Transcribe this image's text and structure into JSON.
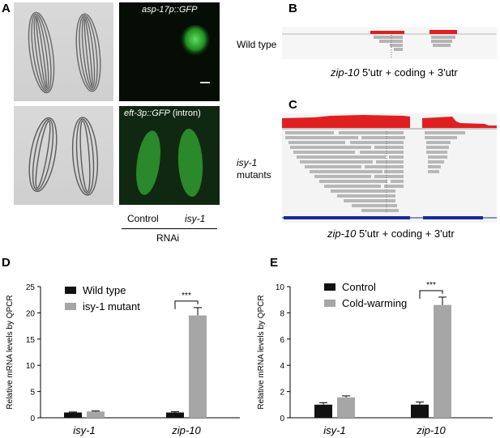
{
  "panels": {
    "A": {
      "label": "A",
      "top_right_title": "asp-17p::GFP",
      "bottom_right_title": "eft-3p::GFP",
      "bottom_right_title_suffix": "(intron)",
      "control_label": "Control",
      "isy1_label": "isy-1",
      "rnai_label": "RNAi"
    },
    "B": {
      "label": "B",
      "row_label": "Wild type",
      "gene": "zip-10",
      "caption_rest": "5'utr + coding + 3'utr"
    },
    "C": {
      "label": "C",
      "row_label_italic": "isy-1",
      "row_label_rest": "mutants",
      "gene": "zip-10",
      "caption_rest": "5'utr + coding + 3'utr"
    },
    "D": {
      "label": "D"
    },
    "E": {
      "label": "E"
    }
  },
  "chart_data": [
    {
      "type": "bar",
      "panel": "D",
      "ylabel": "Relative mRNA levels by QPCR",
      "ylim": [
        0,
        25
      ],
      "yticks": [
        0,
        5,
        10,
        15,
        20,
        25
      ],
      "categories": [
        "isy-1",
        "zip-10"
      ],
      "series": [
        {
          "name": "Wild type",
          "color": "#111111",
          "values": [
            1.0,
            1.0
          ],
          "errors": [
            0.1,
            0.15
          ]
        },
        {
          "name": "isy-1 mutant",
          "color": "#a6a6a6",
          "values": [
            1.2,
            19.5
          ],
          "errors": [
            0.1,
            1.5
          ]
        }
      ],
      "significance": {
        "category": "zip-10",
        "label": "***"
      },
      "legend": "top-left"
    },
    {
      "type": "bar",
      "panel": "E",
      "ylabel": "Relative mRNA levels by QPCR",
      "ylim": [
        0,
        10
      ],
      "yticks": [
        0,
        2,
        4,
        6,
        8,
        10
      ],
      "categories": [
        "isy-1",
        "zip-10"
      ],
      "series": [
        {
          "name": "Control",
          "color": "#111111",
          "values": [
            1.0,
            1.0
          ],
          "errors": [
            0.15,
            0.2
          ]
        },
        {
          "name": "Cold-warming",
          "color": "#a6a6a6",
          "values": [
            1.55,
            8.6
          ],
          "errors": [
            0.12,
            0.6
          ]
        }
      ],
      "significance": {
        "category": "zip-10",
        "label": "***"
      },
      "legend": "top-left"
    }
  ]
}
